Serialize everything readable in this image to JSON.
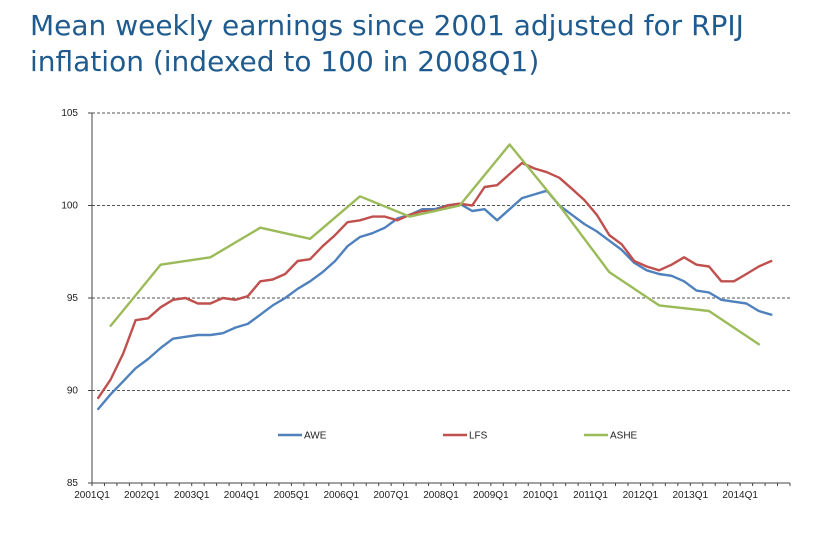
{
  "title": "Mean weekly earnings since 2001 adjusted for RPIJ inflation (indexed to 100 in 2008Q1)",
  "chart_data": {
    "type": "line",
    "title": "Mean weekly earnings since 2001 adjusted for RPIJ inflation (indexed to 100 in 2008Q1)",
    "xlabel": "",
    "ylabel": "",
    "ylim": [
      85,
      105
    ],
    "yticks": [
      85,
      90,
      95,
      100,
      105
    ],
    "grid": "horizontal dashed",
    "legend": "inside-bottom",
    "x_tick_labels": [
      "2001Q1",
      "2002Q1",
      "2003Q1",
      "2004Q1",
      "2005Q1",
      "2006Q1",
      "2007Q1",
      "2008Q1",
      "2009Q1",
      "2010Q1",
      "2011Q1",
      "2012Q1",
      "2013Q1",
      "2014Q1"
    ],
    "series": [
      {
        "name": "AWE",
        "color": "#4f81bd",
        "points": [
          [
            "2001Q1",
            89.0
          ],
          [
            "2001Q2",
            89.8
          ],
          [
            "2001Q3",
            90.5
          ],
          [
            "2001Q4",
            91.2
          ],
          [
            "2002Q1",
            91.7
          ],
          [
            "2002Q2",
            92.3
          ],
          [
            "2002Q3",
            92.8
          ],
          [
            "2002Q4",
            92.9
          ],
          [
            "2003Q1",
            93.0
          ],
          [
            "2003Q2",
            93.0
          ],
          [
            "2003Q3",
            93.1
          ],
          [
            "2003Q4",
            93.4
          ],
          [
            "2004Q1",
            93.6
          ],
          [
            "2004Q2",
            94.1
          ],
          [
            "2004Q3",
            94.6
          ],
          [
            "2004Q4",
            95.0
          ],
          [
            "2005Q1",
            95.5
          ],
          [
            "2005Q2",
            95.9
          ],
          [
            "2005Q3",
            96.4
          ],
          [
            "2005Q4",
            97.0
          ],
          [
            "2006Q1",
            97.8
          ],
          [
            "2006Q2",
            98.3
          ],
          [
            "2006Q3",
            98.5
          ],
          [
            "2006Q4",
            98.8
          ],
          [
            "2007Q1",
            99.3
          ],
          [
            "2007Q2",
            99.5
          ],
          [
            "2007Q3",
            99.8
          ],
          [
            "2007Q4",
            99.8
          ],
          [
            "2008Q1",
            100.0
          ],
          [
            "2008Q2",
            100.1
          ],
          [
            "2008Q3",
            99.7
          ],
          [
            "2008Q4",
            99.8
          ],
          [
            "2009Q1",
            99.2
          ],
          [
            "2009Q2",
            99.8
          ],
          [
            "2009Q3",
            100.4
          ],
          [
            "2009Q4",
            100.6
          ],
          [
            "2010Q1",
            100.8
          ],
          [
            "2010Q2",
            100.0
          ],
          [
            "2010Q3",
            99.5
          ],
          [
            "2010Q4",
            99.0
          ],
          [
            "2011Q1",
            98.6
          ],
          [
            "2011Q2",
            98.1
          ],
          [
            "2011Q3",
            97.6
          ],
          [
            "2011Q4",
            96.9
          ],
          [
            "2012Q1",
            96.5
          ],
          [
            "2012Q2",
            96.3
          ],
          [
            "2012Q3",
            96.2
          ],
          [
            "2012Q4",
            95.9
          ],
          [
            "2013Q1",
            95.4
          ],
          [
            "2013Q2",
            95.3
          ],
          [
            "2013Q3",
            94.9
          ],
          [
            "2013Q4",
            94.8
          ],
          [
            "2014Q1",
            94.7
          ],
          [
            "2014Q2",
            94.3
          ],
          [
            "2014Q3",
            94.1
          ]
        ]
      },
      {
        "name": "LFS",
        "color": "#c0504d",
        "points": [
          [
            "2001Q1",
            89.6
          ],
          [
            "2001Q2",
            90.6
          ],
          [
            "2001Q3",
            92.0
          ],
          [
            "2001Q4",
            93.8
          ],
          [
            "2002Q1",
            93.9
          ],
          [
            "2002Q2",
            94.5
          ],
          [
            "2002Q3",
            94.9
          ],
          [
            "2002Q4",
            95.0
          ],
          [
            "2003Q1",
            94.7
          ],
          [
            "2003Q2",
            94.7
          ],
          [
            "2003Q3",
            95.0
          ],
          [
            "2003Q4",
            94.9
          ],
          [
            "2004Q1",
            95.1
          ],
          [
            "2004Q2",
            95.9
          ],
          [
            "2004Q3",
            96.0
          ],
          [
            "2004Q4",
            96.3
          ],
          [
            "2005Q1",
            97.0
          ],
          [
            "2005Q2",
            97.1
          ],
          [
            "2005Q3",
            97.8
          ],
          [
            "2005Q4",
            98.4
          ],
          [
            "2006Q1",
            99.1
          ],
          [
            "2006Q2",
            99.2
          ],
          [
            "2006Q3",
            99.4
          ],
          [
            "2006Q4",
            99.4
          ],
          [
            "2007Q1",
            99.2
          ],
          [
            "2007Q2",
            99.5
          ],
          [
            "2007Q3",
            99.7
          ],
          [
            "2007Q4",
            99.7
          ],
          [
            "2008Q1",
            100.0
          ],
          [
            "2008Q2",
            100.1
          ],
          [
            "2008Q3",
            100.0
          ],
          [
            "2008Q4",
            101.0
          ],
          [
            "2009Q1",
            101.1
          ],
          [
            "2009Q2",
            101.7
          ],
          [
            "2009Q3",
            102.3
          ],
          [
            "2009Q4",
            102.0
          ],
          [
            "2010Q1",
            101.8
          ],
          [
            "2010Q2",
            101.5
          ],
          [
            "2010Q3",
            100.9
          ],
          [
            "2010Q4",
            100.3
          ],
          [
            "2011Q1",
            99.5
          ],
          [
            "2011Q2",
            98.4
          ],
          [
            "2011Q3",
            97.9
          ],
          [
            "2011Q4",
            97.0
          ],
          [
            "2012Q1",
            96.7
          ],
          [
            "2012Q2",
            96.5
          ],
          [
            "2012Q3",
            96.8
          ],
          [
            "2012Q4",
            97.2
          ],
          [
            "2013Q1",
            96.8
          ],
          [
            "2013Q2",
            96.7
          ],
          [
            "2013Q3",
            95.9
          ],
          [
            "2013Q4",
            95.9
          ],
          [
            "2014Q1",
            96.3
          ],
          [
            "2014Q2",
            96.7
          ],
          [
            "2014Q3",
            97.0
          ]
        ]
      },
      {
        "name": "ASHE",
        "color": "#9bbb59",
        "points": [
          [
            "2001Q2",
            93.5
          ],
          [
            "2002Q2",
            96.8
          ],
          [
            "2003Q2",
            97.2
          ],
          [
            "2004Q2",
            98.8
          ],
          [
            "2005Q2",
            98.2
          ],
          [
            "2006Q2",
            100.5
          ],
          [
            "2007Q2",
            99.4
          ],
          [
            "2008Q2",
            100.0
          ],
          [
            "2009Q2",
            103.3
          ],
          [
            "2010Q2",
            100.0
          ],
          [
            "2011Q2",
            96.4
          ],
          [
            "2012Q2",
            94.6
          ],
          [
            "2013Q2",
            94.3
          ],
          [
            "2014Q2",
            92.5
          ]
        ]
      }
    ]
  }
}
